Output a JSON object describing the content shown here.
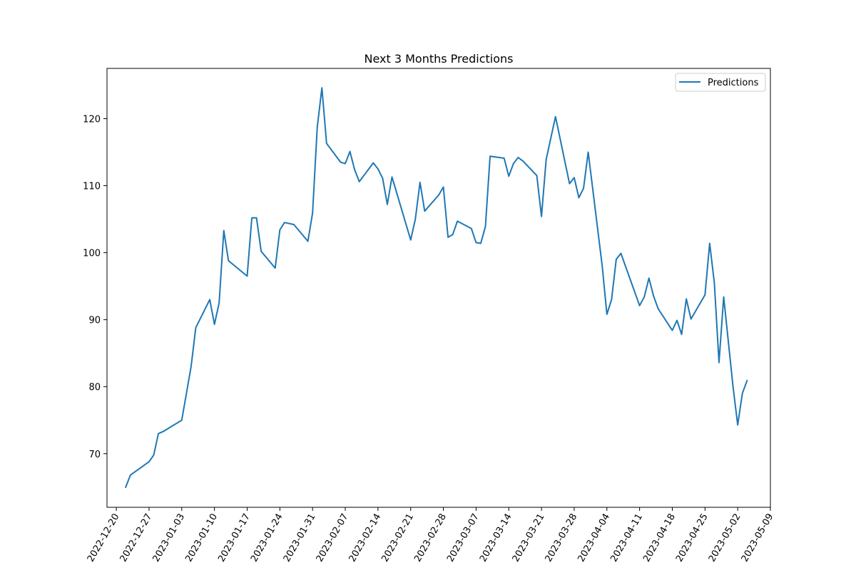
{
  "chart_data": {
    "type": "line",
    "title": "Next 3 Months Predictions",
    "xlabel": "",
    "ylabel": "",
    "xlim": [
      "2022-12-18",
      "2023-05-09"
    ],
    "ylim": [
      62,
      127.5
    ],
    "x_ticks": [
      "2022-12-20",
      "2022-12-27",
      "2023-01-03",
      "2023-01-10",
      "2023-01-17",
      "2023-01-24",
      "2023-01-31",
      "2023-02-07",
      "2023-02-14",
      "2023-02-21",
      "2023-02-28",
      "2023-03-07",
      "2023-03-14",
      "2023-03-21",
      "2023-03-28",
      "2023-04-04",
      "2023-04-11",
      "2023-04-18",
      "2023-04-25",
      "2023-05-02",
      "2023-05-09"
    ],
    "y_ticks": [
      70,
      80,
      90,
      100,
      110,
      120
    ],
    "grid": false,
    "legend_position": "upper right",
    "series": [
      {
        "name": "Predictions",
        "color": "#1f77b4",
        "points": [
          [
            "2022-12-22",
            65.0
          ],
          [
            "2022-12-23",
            66.8
          ],
          [
            "2022-12-27",
            68.8
          ],
          [
            "2022-12-28",
            69.8
          ],
          [
            "2022-12-29",
            73.0
          ],
          [
            "2022-12-30",
            73.3
          ],
          [
            "2023-01-03",
            75.0
          ],
          [
            "2023-01-04",
            79.0
          ],
          [
            "2023-01-05",
            83.0
          ],
          [
            "2023-01-06",
            88.8
          ],
          [
            "2023-01-09",
            93.0
          ],
          [
            "2023-01-10",
            89.3
          ],
          [
            "2023-01-11",
            92.5
          ],
          [
            "2023-01-12",
            103.3
          ],
          [
            "2023-01-13",
            98.8
          ],
          [
            "2023-01-17",
            96.5
          ],
          [
            "2023-01-18",
            105.2
          ],
          [
            "2023-01-19",
            105.2
          ],
          [
            "2023-01-20",
            100.2
          ],
          [
            "2023-01-23",
            97.7
          ],
          [
            "2023-01-24",
            103.4
          ],
          [
            "2023-01-25",
            104.5
          ],
          [
            "2023-01-27",
            104.2
          ],
          [
            "2023-01-30",
            101.7
          ],
          [
            "2023-01-31",
            105.9
          ],
          [
            "2023-02-01",
            118.7
          ],
          [
            "2023-02-02",
            124.6
          ],
          [
            "2023-02-03",
            116.3
          ],
          [
            "2023-02-06",
            113.5
          ],
          [
            "2023-02-07",
            113.3
          ],
          [
            "2023-02-08",
            115.1
          ],
          [
            "2023-02-09",
            112.4
          ],
          [
            "2023-02-10",
            110.6
          ],
          [
            "2023-02-13",
            113.4
          ],
          [
            "2023-02-14",
            112.5
          ],
          [
            "2023-02-15",
            111.1
          ],
          [
            "2023-02-16",
            107.2
          ],
          [
            "2023-02-17",
            111.3
          ],
          [
            "2023-02-21",
            101.9
          ],
          [
            "2023-02-22",
            105.0
          ],
          [
            "2023-02-23",
            110.5
          ],
          [
            "2023-02-24",
            106.2
          ],
          [
            "2023-02-27",
            108.6
          ],
          [
            "2023-02-28",
            109.8
          ],
          [
            "2023-03-01",
            102.3
          ],
          [
            "2023-03-02",
            102.7
          ],
          [
            "2023-03-03",
            104.7
          ],
          [
            "2023-03-06",
            103.6
          ],
          [
            "2023-03-07",
            101.5
          ],
          [
            "2023-03-08",
            101.4
          ],
          [
            "2023-03-09",
            103.9
          ],
          [
            "2023-03-10",
            114.4
          ],
          [
            "2023-03-13",
            114.1
          ],
          [
            "2023-03-14",
            111.4
          ],
          [
            "2023-03-15",
            113.3
          ],
          [
            "2023-03-16",
            114.2
          ],
          [
            "2023-03-17",
            113.7
          ],
          [
            "2023-03-20",
            111.5
          ],
          [
            "2023-03-21",
            105.4
          ],
          [
            "2023-03-22",
            113.9
          ],
          [
            "2023-03-24",
            120.3
          ],
          [
            "2023-03-27",
            110.3
          ],
          [
            "2023-03-28",
            111.2
          ],
          [
            "2023-03-29",
            108.2
          ],
          [
            "2023-03-30",
            109.6
          ],
          [
            "2023-03-31",
            115.0
          ],
          [
            "2023-04-03",
            98.0
          ],
          [
            "2023-04-04",
            90.8
          ],
          [
            "2023-04-05",
            93.0
          ],
          [
            "2023-04-06",
            99.0
          ],
          [
            "2023-04-07",
            99.9
          ],
          [
            "2023-04-11",
            92.1
          ],
          [
            "2023-04-12",
            93.4
          ],
          [
            "2023-04-13",
            96.2
          ],
          [
            "2023-04-14",
            93.5
          ],
          [
            "2023-04-15",
            91.6
          ],
          [
            "2023-04-18",
            88.4
          ],
          [
            "2023-04-19",
            89.9
          ],
          [
            "2023-04-20",
            87.8
          ],
          [
            "2023-04-21",
            93.1
          ],
          [
            "2023-04-22",
            90.1
          ],
          [
            "2023-04-25",
            93.7
          ],
          [
            "2023-04-26",
            101.4
          ],
          [
            "2023-04-27",
            95.5
          ],
          [
            "2023-04-28",
            83.6
          ],
          [
            "2023-04-29",
            93.4
          ],
          [
            "2023-05-01",
            80.0
          ],
          [
            "2023-05-02",
            74.3
          ],
          [
            "2023-05-03",
            79.0
          ],
          [
            "2023-05-04",
            80.9
          ]
        ]
      }
    ]
  }
}
